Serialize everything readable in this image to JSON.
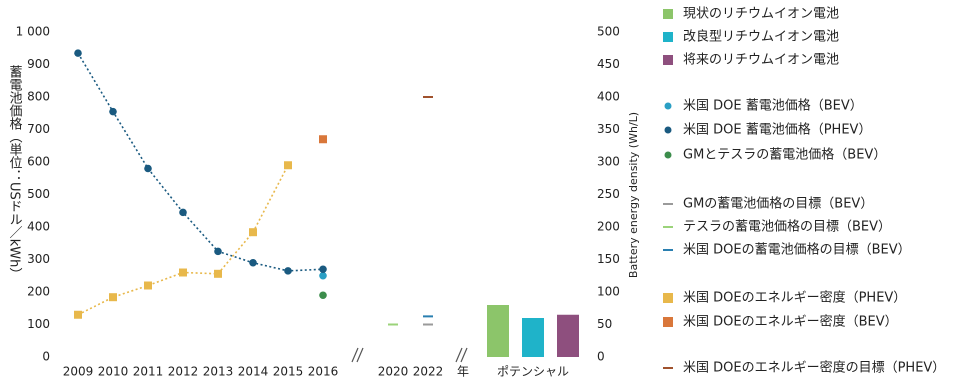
{
  "chart_data": {
    "type": "combo",
    "y_label": "蓄電池価格（単位：USドル／kWh）",
    "y2_label": "Battery energy density (Wh/L)",
    "categories": [
      "2009",
      "2010",
      "2011",
      "2012",
      "2013",
      "2014",
      "2015",
      "2016",
      null,
      "2020",
      "2022",
      "年",
      null,
      "ポテンシャル",
      null
    ],
    "ylim": [
      0,
      1000
    ],
    "yticks": [
      0,
      100,
      200,
      300,
      400,
      500,
      600,
      700,
      800,
      900,
      {
        "value": 1000,
        "label": "1 000"
      }
    ],
    "y2lim": [
      0,
      500
    ],
    "y2ticks": [
      0,
      50,
      100,
      150,
      200,
      250,
      300,
      350,
      400,
      450,
      500
    ],
    "grid": false,
    "legend": "right",
    "series": [
      {
        "name": "現状のリチウムイオン電池",
        "marker": "bar",
        "axis": "y2",
        "color": "#8cc56a",
        "values": [
          null,
          null,
          null,
          null,
          null,
          null,
          null,
          null,
          null,
          null,
          null,
          null,
          80,
          null,
          null
        ]
      },
      {
        "name": "改良型リチウムイオン電池",
        "marker": "bar",
        "axis": "y2",
        "color": "#1fb3c9",
        "values": [
          null,
          null,
          null,
          null,
          null,
          null,
          null,
          null,
          null,
          null,
          null,
          null,
          null,
          60,
          null
        ]
      },
      {
        "name": "将来のリチウムイオン電池",
        "marker": "bar",
        "axis": "y2",
        "color": "#8e4f7e",
        "values": [
          null,
          null,
          null,
          null,
          null,
          null,
          null,
          null,
          null,
          null,
          null,
          null,
          null,
          null,
          65
        ]
      },
      {
        "name": "米国 DOE 蓄電池価格（BEV）",
        "marker": "dot",
        "axis": "y",
        "color": "#2a9fc4",
        "values": [
          null,
          null,
          null,
          null,
          null,
          null,
          null,
          250,
          null,
          null,
          null,
          null,
          null,
          null,
          null
        ]
      },
      {
        "name": "米国 DOE 蓄電池価格（PHEV）",
        "marker": "dot",
        "line": true,
        "axis": "y",
        "color": "#1a5a80",
        "values": [
          935,
          755,
          580,
          445,
          325,
          290,
          265,
          270,
          null,
          null,
          null,
          null,
          null,
          null,
          null
        ]
      },
      {
        "name": "GMとテスラの蓄電池価格（BEV）",
        "marker": "dot",
        "axis": "y",
        "color": "#3c8d4c",
        "values": [
          null,
          null,
          null,
          null,
          null,
          null,
          null,
          190,
          null,
          null,
          null,
          null,
          null,
          null,
          null
        ]
      },
      {
        "name": "GMの蓄電池価格の目標（BEV）",
        "marker": "dash",
        "axis": "y",
        "color": "#9a9a9a",
        "values": [
          null,
          null,
          null,
          null,
          null,
          null,
          null,
          null,
          null,
          null,
          100,
          null,
          null,
          null,
          null
        ]
      },
      {
        "name": "テスラの蓄電池価格の目標（BEV）",
        "marker": "dash",
        "axis": "y",
        "color": "#9bd37a",
        "values": [
          null,
          null,
          null,
          null,
          null,
          null,
          null,
          null,
          null,
          100,
          null,
          null,
          null,
          null,
          null
        ]
      },
      {
        "name": "米国 DOEの蓄電池価格の目標（BEV）",
        "marker": "dash",
        "axis": "y",
        "color": "#2a7fb0",
        "values": [
          null,
          null,
          null,
          null,
          null,
          null,
          null,
          null,
          null,
          null,
          125,
          null,
          null,
          null,
          null
        ]
      },
      {
        "name": "米国 DOEのエネルギー密度（PHEV）",
        "marker": "square",
        "line": true,
        "axis": "y2",
        "color": "#e8b84b",
        "values": [
          65,
          92,
          110,
          130,
          128,
          192,
          295,
          null,
          null,
          null,
          null,
          null,
          null,
          null,
          null
        ]
      },
      {
        "name": "米国 DOEのエネルギー密度（BEV）",
        "marker": "square",
        "axis": "y2",
        "color": "#d9773a",
        "values": [
          null,
          null,
          null,
          null,
          null,
          null,
          null,
          335,
          null,
          null,
          null,
          null,
          null,
          null,
          null
        ]
      },
      {
        "name": "米国 DOEのエネルギー密度の目標（PHEV）",
        "marker": "dash",
        "axis": "y2",
        "color": "#a0522d",
        "values": [
          null,
          null,
          null,
          null,
          null,
          null,
          null,
          null,
          null,
          null,
          400,
          null,
          null,
          null,
          null
        ]
      }
    ]
  }
}
